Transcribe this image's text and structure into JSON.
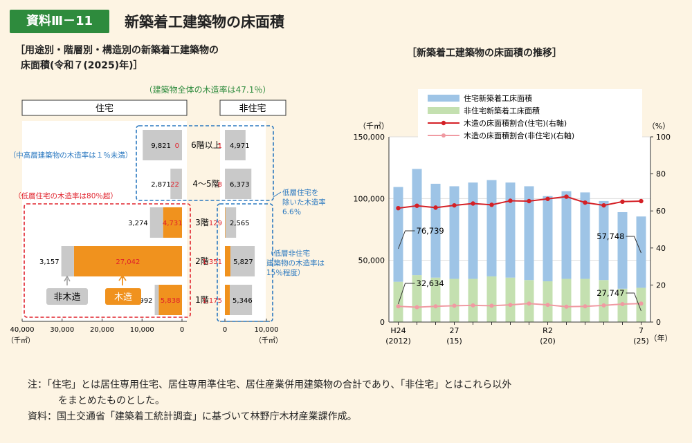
{
  "header": {
    "badge": "資料Ⅲ－11",
    "title": "新築着工建築物の床面積"
  },
  "left": {
    "subtitle_line1": "［用途別・階層別・構造別の新築着工建築物の",
    "subtitle_line2": "床面積(令和７(2025)年)］",
    "overall_note": "（建築物全体の木造率は47.1％）",
    "res_label": "住宅",
    "nonres_label": "非住宅",
    "note_midhigh": "（中高層建築物の木造率は１％未満）",
    "note_lowres": "（低層住宅の木造率は80％超）",
    "note_lowexcl": [
      "低層住宅を",
      "除いた木造率",
      "6.6％"
    ],
    "note_lownonres": [
      "（低層非住宅",
      "建築物の木造率は",
      "15％程度）"
    ],
    "legend_nonwood": "非木造",
    "legend_wood": "木造",
    "left_axis_ticks": [
      "40,000",
      "30,000",
      "20,000",
      "10,000",
      "0"
    ],
    "right_axis_ticks": [
      "0",
      "10,000"
    ],
    "axis_unit": "（千㎡）",
    "colors": {
      "wood": "#f0921e",
      "nonwood": "#c9c9c9",
      "red": "#e0202a",
      "blue": "#2a78c0"
    }
  },
  "right": {
    "subtitle": "［新築着工建築物の床面積の推移］",
    "y_left_unit": "（千㎡）",
    "y_right_unit": "（%）",
    "year_unit": "（年）",
    "x_labels": [
      {
        "top": "H24",
        "bottom": "(2012)"
      },
      {
        "top": "27",
        "bottom": "(15)"
      },
      {
        "top": "R2",
        "bottom": "(20)"
      },
      {
        "top": "7",
        "bottom": "(25)"
      }
    ],
    "legend": [
      "住宅新築着工床面積",
      "非住宅新築着工床面積",
      "木造の床面積割合(住宅)(右軸)",
      "木造の床面積割合(非住宅)(右軸)"
    ],
    "annotations": [
      "76,739",
      "32,634",
      "57,748",
      "27,747"
    ],
    "colors": {
      "residential": "#9ec4e6",
      "nonresidential": "#c4e0b0",
      "wood_res": "#d42026",
      "wood_nonres": "#f09aa2"
    }
  },
  "chart_data": [
    {
      "type": "bar",
      "title": "用途別・階層別・構造別の新築着工建築物の床面積(令和７(2025)年)",
      "categories": [
        "6階以上",
        "4～5階",
        "3階",
        "2階",
        "1階"
      ],
      "series": [
        {
          "name": "住宅 非木造",
          "values": [
            9821,
            2871,
            3274,
            3157,
            992
          ]
        },
        {
          "name": "住宅 木造",
          "values": [
            0,
            22,
            4731,
            27042,
            5838
          ]
        },
        {
          "name": "非住宅 木造",
          "values": [
            1,
            8,
            129,
            1351,
            1175
          ]
        },
        {
          "name": "非住宅 非木造",
          "values": [
            4971,
            6373,
            2565,
            5827,
            5346
          ]
        }
      ],
      "xlabel": "（千㎡）",
      "xlim_left": [
        0,
        40000
      ],
      "xlim_right": [
        0,
        10000
      ]
    },
    {
      "type": "bar",
      "title": "新築着工建築物の床面積の推移",
      "categories": [
        "2012",
        "2013",
        "2014",
        "2015",
        "2016",
        "2017",
        "2018",
        "2019",
        "2020",
        "2021",
        "2022",
        "2023",
        "2024",
        "2025"
      ],
      "series": [
        {
          "name": "住宅新築着工床面積",
          "values": [
            76739,
            86000,
            76000,
            75000,
            78000,
            78000,
            77000,
            76000,
            69000,
            71000,
            70000,
            64000,
            62000,
            57748
          ]
        },
        {
          "name": "非住宅新築着工床面積",
          "values": [
            32634,
            38000,
            36000,
            35000,
            35000,
            37000,
            36000,
            34000,
            33000,
            35000,
            35000,
            34000,
            27000,
            27747
          ]
        },
        {
          "name": "木造の床面積割合(住宅)(右軸)",
          "axis": "right",
          "values": [
            61.5,
            62.8,
            61.8,
            63.0,
            64.0,
            63.3,
            65.5,
            65.3,
            66.5,
            67.7,
            64.5,
            63.0,
            65.0,
            65.3
          ]
        },
        {
          "name": "木造の床面積割合(非住宅)(右軸)",
          "axis": "right",
          "values": [
            8.5,
            8.0,
            8.5,
            8.8,
            9.0,
            8.8,
            9.3,
            10.0,
            9.3,
            8.3,
            8.5,
            9.0,
            9.7,
            10.0
          ]
        }
      ],
      "ylabel": "（千㎡）",
      "ylim": [
        0,
        150000
      ],
      "y2label": "（%）",
      "y2lim": [
        0,
        100
      ],
      "stacked": true,
      "legend_position": "top"
    }
  ]
}
